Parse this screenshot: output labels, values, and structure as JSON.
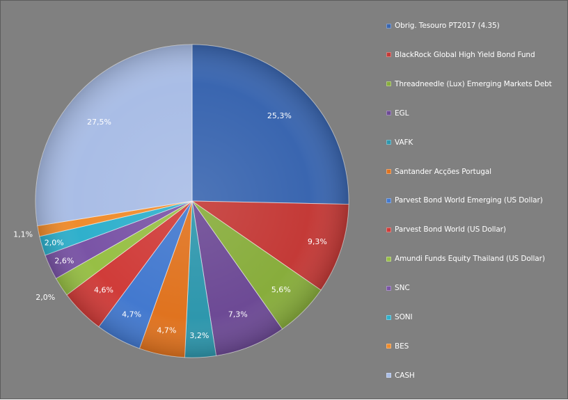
{
  "chart_data": {
    "type": "pie",
    "title": "",
    "start_angle_deg": 0,
    "direction": "clockwise",
    "legend_position": "right",
    "slices": [
      {
        "label": "Obrig. Tesouro PT2017  (4.35)",
        "value": 25.3,
        "display": "25,3%",
        "color": "#3a66b0"
      },
      {
        "label": "BlackRock Global High Yield Bond Fund",
        "value": 9.3,
        "display": "9,3%",
        "color": "#c43a37"
      },
      {
        "label": "Threadneedle (Lux) Emerging Markets Debt",
        "value": 5.6,
        "display": "5,6%",
        "color": "#88ad3c"
      },
      {
        "label": "EGL",
        "value": 7.3,
        "display": "7,3%",
        "color": "#6d4a95"
      },
      {
        "label": "VAFK",
        "value": 3.2,
        "display": "3,2%",
        "color": "#2e97ad"
      },
      {
        "label": "Santander Acções Portugal",
        "value": 4.7,
        "display": "4,7%",
        "color": "#e0731f"
      },
      {
        "label": "Parvest Bond World Emerging (US Dollar)",
        "value": 4.7,
        "display": "4,7%",
        "color": "#4379cf"
      },
      {
        "label": "Parvest Bond World (US Dollar)",
        "value": 4.6,
        "display": "4,6%",
        "color": "#d03c39"
      },
      {
        "label": "Amundi Funds Equity Thailand (US Dollar)",
        "value": 2.0,
        "display": "2,0%",
        "color": "#97bf45"
      },
      {
        "label": "SNC",
        "value": 2.6,
        "display": "2,6%",
        "color": "#7a54a6"
      },
      {
        "label": "SONI",
        "value": 2.0,
        "display": "2,0%",
        "color": "#2fb0cc"
      },
      {
        "label": "BES",
        "value": 1.1,
        "display": "1,1%",
        "color": "#f08c2c"
      },
      {
        "label": "CASH",
        "value": 27.5,
        "display": "27,5%",
        "color": "#a9bde6"
      }
    ]
  }
}
